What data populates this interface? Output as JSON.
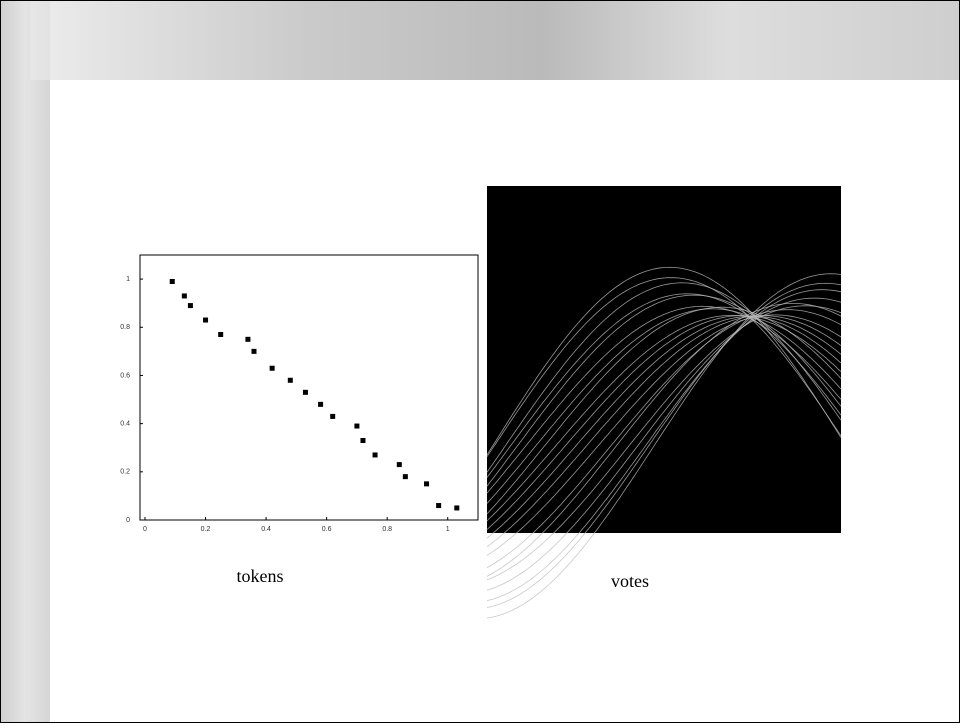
{
  "chart_data": {
    "type": "scatter",
    "x": [
      0.09,
      0.13,
      0.15,
      0.2,
      0.25,
      0.34,
      0.36,
      0.42,
      0.48,
      0.53,
      0.58,
      0.62,
      0.7,
      0.72,
      0.76,
      0.84,
      0.86,
      0.93,
      0.97,
      1.03
    ],
    "values": [
      0.99,
      0.93,
      0.89,
      0.83,
      0.77,
      0.75,
      0.7,
      0.63,
      0.58,
      0.53,
      0.48,
      0.43,
      0.39,
      0.33,
      0.27,
      0.23,
      0.18,
      0.15,
      0.06,
      0.05
    ],
    "color": "#000000",
    "xlim": [
      0,
      1.1
    ],
    "ylim": [
      0,
      1.1
    ],
    "xticks": [
      0,
      0.2,
      0.4,
      0.6,
      0.8,
      1
    ],
    "yticks": [
      0,
      0.2,
      0.4,
      0.6,
      0.8,
      1
    ]
  },
  "captions": {
    "left": "tokens",
    "right": "votes"
  }
}
